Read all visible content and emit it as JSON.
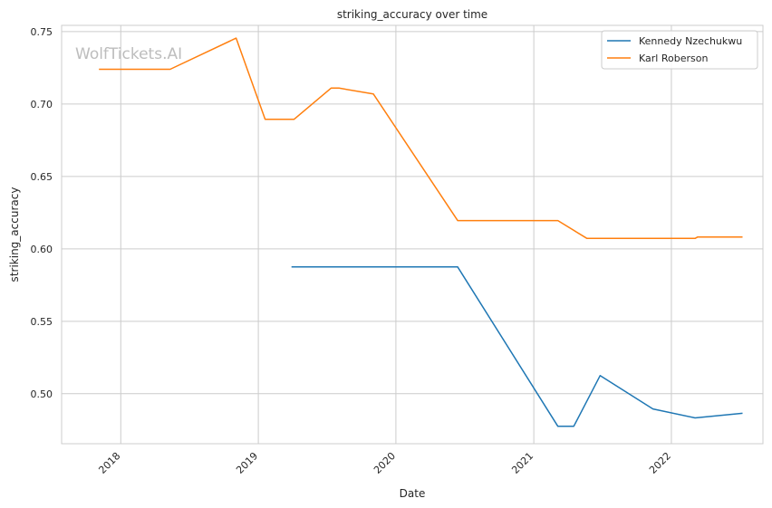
{
  "chart_data": {
    "type": "line",
    "title": "striking_accuracy over time",
    "xlabel": "Date",
    "ylabel": "striking_accuracy",
    "watermark": "WolfTickets.AI",
    "x_is_date": true,
    "xlim": [
      "2017-07-28",
      "2022-09-01"
    ],
    "ylim": [
      0.4655,
      0.7543
    ],
    "x_ticks": [
      {
        "date": "2018-01-01",
        "label": "2018"
      },
      {
        "date": "2019-01-01",
        "label": "2019"
      },
      {
        "date": "2020-01-01",
        "label": "2020"
      },
      {
        "date": "2021-01-01",
        "label": "2021"
      },
      {
        "date": "2022-01-01",
        "label": "2022"
      }
    ],
    "y_ticks": [
      {
        "value": 0.5,
        "label": "0.50"
      },
      {
        "value": 0.55,
        "label": "0.55"
      },
      {
        "value": 0.6,
        "label": "0.60"
      },
      {
        "value": 0.65,
        "label": "0.65"
      },
      {
        "value": 0.7,
        "label": "0.70"
      },
      {
        "value": 0.75,
        "label": "0.75"
      }
    ],
    "grid": true,
    "legend_position": "top-right",
    "series": [
      {
        "name": "Kennedy Nzechukwu",
        "color": "#1f77b4",
        "points": [
          {
            "x": "2019-03-30",
            "y": 0.5875
          },
          {
            "x": "2020-06-13",
            "y": 0.5875
          },
          {
            "x": "2021-03-06",
            "y": 0.4775
          },
          {
            "x": "2021-04-17",
            "y": 0.4775
          },
          {
            "x": "2021-06-26",
            "y": 0.5125
          },
          {
            "x": "2021-11-13",
            "y": 0.4895
          },
          {
            "x": "2022-03-05",
            "y": 0.4833
          },
          {
            "x": "2022-07-09",
            "y": 0.4865
          }
        ]
      },
      {
        "name": "Karl Roberson",
        "color": "#ff7f0e",
        "points": [
          {
            "x": "2017-11-04",
            "y": 0.724
          },
          {
            "x": "2018-05-12",
            "y": 0.724
          },
          {
            "x": "2018-11-03",
            "y": 0.7455
          },
          {
            "x": "2019-01-19",
            "y": 0.6895
          },
          {
            "x": "2019-04-06",
            "y": 0.6895
          },
          {
            "x": "2019-07-13",
            "y": 0.711
          },
          {
            "x": "2019-08-03",
            "y": 0.711
          },
          {
            "x": "2019-11-02",
            "y": 0.707
          },
          {
            "x": "2020-06-13",
            "y": 0.6195
          },
          {
            "x": "2021-03-06",
            "y": 0.6195
          },
          {
            "x": "2021-05-22",
            "y": 0.6072
          },
          {
            "x": "2022-03-05",
            "y": 0.6072
          },
          {
            "x": "2022-03-12",
            "y": 0.6082
          },
          {
            "x": "2022-07-09",
            "y": 0.6082
          }
        ]
      }
    ]
  }
}
